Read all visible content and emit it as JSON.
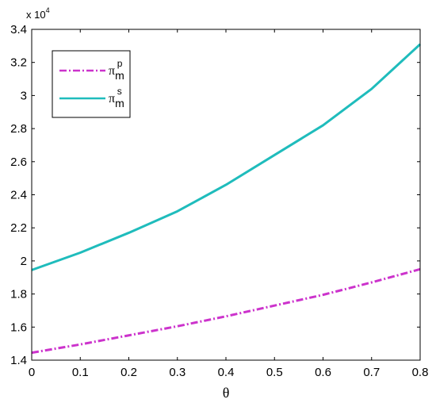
{
  "chart_data": {
    "type": "line",
    "xlabel": "θ",
    "ylabel": "",
    "y_exponent_label": "x 10",
    "y_exponent_power": "4",
    "xlim": [
      0,
      0.8
    ],
    "ylim": [
      14000,
      34000
    ],
    "x_ticks": [
      0,
      0.1,
      0.2,
      0.3,
      0.4,
      0.5,
      0.6,
      0.7,
      0.8
    ],
    "x_tick_labels": [
      "0",
      "0.1",
      "0.2",
      "0.3",
      "0.4",
      "0.5",
      "0.6",
      "0.7",
      "0.8"
    ],
    "y_ticks": [
      14000,
      16000,
      18000,
      20000,
      22000,
      24000,
      26000,
      28000,
      30000,
      32000,
      34000
    ],
    "y_tick_labels": [
      "1.4",
      "1.6",
      "1.8",
      "2",
      "2.2",
      "2.4",
      "2.6",
      "2.8",
      "3",
      "3.2",
      "3.4"
    ],
    "grid": false,
    "legend_position": "top-left",
    "series": [
      {
        "name_base": "π",
        "name_sub": "m",
        "name_sup": "p",
        "color": "#cc33cc",
        "line_style": "dash-dot",
        "x": [
          0,
          0.1,
          0.2,
          0.3,
          0.4,
          0.5,
          0.6,
          0.7,
          0.8
        ],
        "y": [
          14450,
          14950,
          15500,
          16050,
          16650,
          17300,
          17950,
          18700,
          19500
        ]
      },
      {
        "name_base": "π",
        "name_sub": "m",
        "name_sup": "s",
        "color": "#1fbcbc",
        "line_style": "solid",
        "x": [
          0,
          0.1,
          0.2,
          0.3,
          0.4,
          0.5,
          0.6,
          0.7,
          0.8
        ],
        "y": [
          19450,
          20500,
          21700,
          23000,
          24600,
          26400,
          28200,
          30400,
          33100
        ]
      }
    ]
  }
}
